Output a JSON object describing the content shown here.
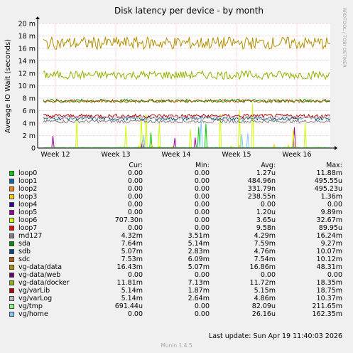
{
  "chart_data": {
    "type": "line",
    "title": "Disk latency per device - by month",
    "ylabel": "Average IO Wait (seconds)",
    "watermark": "RRDTOOL / TOBI OETIKER",
    "ylim": [
      0,
      20
    ],
    "y_ticks": [
      "0",
      "2 m",
      "4 m",
      "6 m",
      "8 m",
      "10 m",
      "12 m",
      "14 m",
      "16 m",
      "18 m",
      "20 m"
    ],
    "x_ticks": [
      "Week 12",
      "Week 13",
      "Week 14",
      "Week 15",
      "Week 16"
    ],
    "grid": true,
    "legend_position": "bottom",
    "headers": {
      "cur": "Cur:",
      "min": "Min:",
      "avg": "Avg:",
      "max": "Max:"
    },
    "series": [
      {
        "name": "loop0",
        "color": "#00cc00",
        "cur": "0.00",
        "min": "0.00",
        "avg": "1.27u",
        "max": "11.88m"
      },
      {
        "name": "loop1",
        "color": "#0066b3",
        "cur": "0.00",
        "min": "0.00",
        "avg": "484.96n",
        "max": "495.55u"
      },
      {
        "name": "loop2",
        "color": "#ff8000",
        "cur": "0.00",
        "min": "0.00",
        "avg": "331.79n",
        "max": "495.23u"
      },
      {
        "name": "loop3",
        "color": "#ffcc00",
        "cur": "0.00",
        "min": "0.00",
        "avg": "238.55n",
        "max": "1.36m"
      },
      {
        "name": "loop4",
        "color": "#330099",
        "cur": "0.00",
        "min": "0.00",
        "avg": "0.00",
        "max": "0.00"
      },
      {
        "name": "loop5",
        "color": "#990099",
        "cur": "0.00",
        "min": "0.00",
        "avg": "1.20u",
        "max": "9.89m"
      },
      {
        "name": "loop6",
        "color": "#ccff00",
        "cur": "707.30n",
        "min": "0.00",
        "avg": "3.65u",
        "max": "32.67m"
      },
      {
        "name": "loop7",
        "color": "#ff0000",
        "cur": "0.00",
        "min": "0.00",
        "avg": "9.58n",
        "max": "89.95u"
      },
      {
        "name": "md127",
        "color": "#808080",
        "cur": "4.32m",
        "min": "3.51m",
        "avg": "4.29m",
        "max": "16.24m"
      },
      {
        "name": "sda",
        "color": "#008f00",
        "cur": "7.64m",
        "min": "5.14m",
        "avg": "7.59m",
        "max": "9.27m"
      },
      {
        "name": "sdb",
        "color": "#00487d",
        "cur": "5.07m",
        "min": "2.83m",
        "avg": "4.76m",
        "max": "10.07m"
      },
      {
        "name": "sdc",
        "color": "#b35a00",
        "cur": "7.53m",
        "min": "6.09m",
        "avg": "7.54m",
        "max": "10.12m"
      },
      {
        "name": "vg-data/data",
        "color": "#b38f00",
        "cur": "16.43m",
        "min": "5.07m",
        "avg": "16.86m",
        "max": "48.31m"
      },
      {
        "name": "vg-data/web",
        "color": "#6b006b",
        "cur": "0.00",
        "min": "0.00",
        "avg": "0.00",
        "max": "0.00"
      },
      {
        "name": "vg-data/docker",
        "color": "#8fb300",
        "cur": "11.81m",
        "min": "7.13m",
        "avg": "11.72m",
        "max": "18.35m"
      },
      {
        "name": "vg/varLib",
        "color": "#b30000",
        "cur": "5.14m",
        "min": "1.87m",
        "avg": "5.15m",
        "max": "18.75m"
      },
      {
        "name": "vg/varLog",
        "color": "#bebebe",
        "cur": "5.14m",
        "min": "2.64m",
        "avg": "4.86m",
        "max": "10.37m"
      },
      {
        "name": "vg/tmp",
        "color": "#80ff80",
        "cur": "691.44u",
        "min": "0.00",
        "avg": "82.09u",
        "max": "211.65m"
      },
      {
        "name": "vg/home",
        "color": "#80c9ff",
        "cur": "0.00",
        "min": "0.00",
        "avg": "26.16u",
        "max": "162.35m"
      }
    ]
  },
  "footer": {
    "last_update": "Last update:  Sun Apr 19 11:40:03 2026",
    "version": "Munin 1.4.5"
  }
}
